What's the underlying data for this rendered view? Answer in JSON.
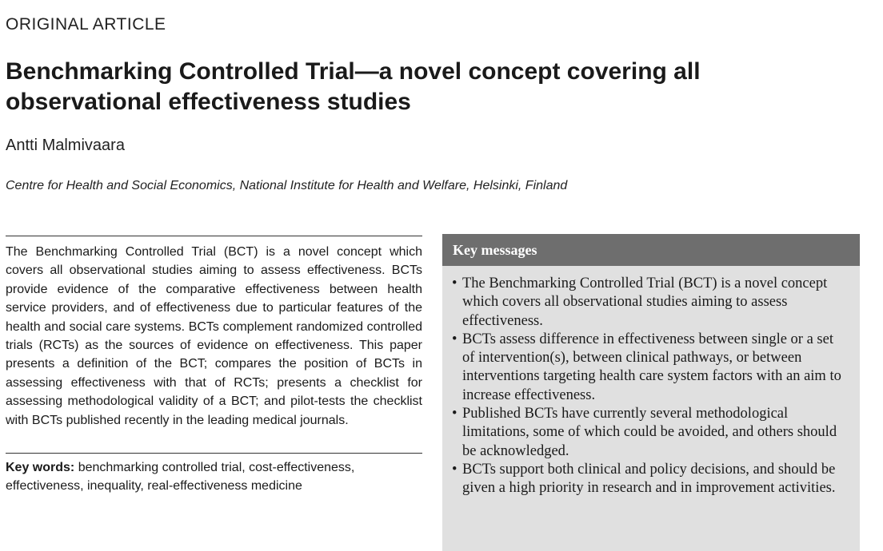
{
  "header": {
    "section_label": "ORIGINAL ARTICLE"
  },
  "article": {
    "title": "Benchmarking Controlled Trial—a novel concept covering all observational effectiveness studies",
    "author": "Antti Malmivaara",
    "affiliation": "Centre for Health and Social Economics, National Institute for Health and Welfare, Helsinki, Finland",
    "abstract": "The Benchmarking Controlled Trial (BCT) is a novel concept which covers all observational studies aiming to assess effectiveness. BCTs provide evidence of the comparative effectiveness between health service providers, and of effectiveness due to particular features of the health and social care systems. BCTs complement randomized controlled trials (RCTs) as the sources of evidence on effectiveness. This paper presents a definition of the BCT; compares the position of BCTs in assessing effectiveness with that of RCTs; presents a checklist for assessing methodological validity of a BCT; and pilot-tests the checklist with BCTs published recently in the leading medical journals.",
    "keywords_label": "Key words:",
    "keywords": "benchmarking controlled trial, cost-effectiveness, effectiveness, inequality, real-effectiveness medicine"
  },
  "key_messages": {
    "heading": "Key messages",
    "bullet": "•",
    "items": [
      "The Benchmarking Controlled Trial (BCT) is a novel concept which covers all observational studies aiming to assess effectiveness.",
      "BCTs assess difference in effectiveness between single or a set of intervention(s), between clinical pathways, or between interventions targeting health care system factors with an aim to increase effectiveness.",
      "Published BCTs have currently several methodological limitations, some of which could be avoided, and others should be acknowledged.",
      "BCTs support both clinical and policy decisions, and should be given a high priority in research and in improvement activities."
    ]
  }
}
